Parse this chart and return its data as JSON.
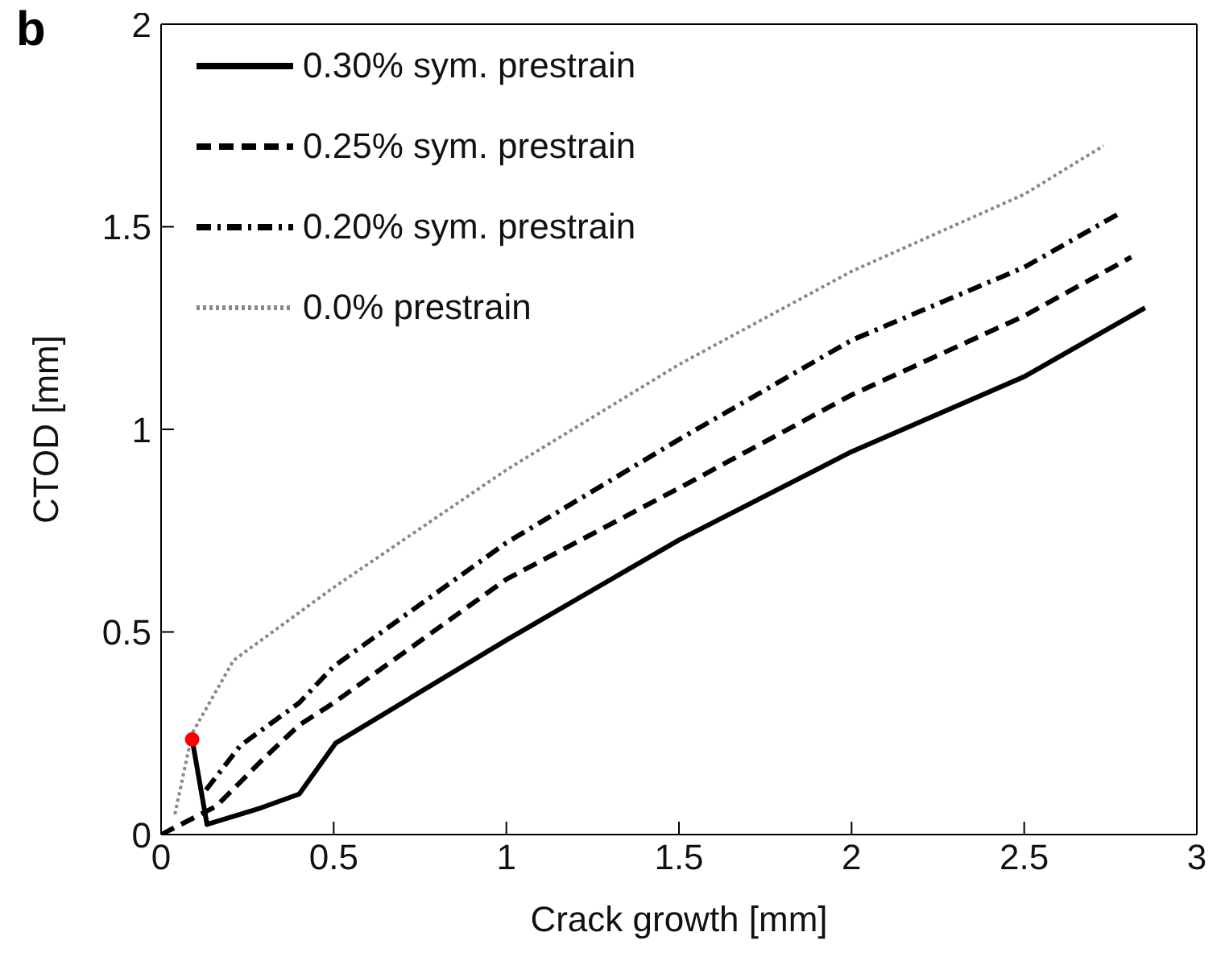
{
  "chart_data": {
    "type": "line",
    "xlabel": "Crack growth [mm]",
    "ylabel": "CTOD [mm]",
    "annotations": [
      "b"
    ],
    "xlim": [
      0,
      3
    ],
    "xticks": [
      0,
      0.5,
      1,
      1.5,
      2,
      2.5,
      3
    ],
    "ylim": [
      0,
      2
    ],
    "yticks": [
      0,
      0.5,
      1,
      1.5,
      2
    ],
    "grid": false,
    "legend": "top left",
    "marker": "none",
    "series": [
      {
        "name": "0.30% sym. prestrain",
        "color": "#000000",
        "line_style": "solid",
        "x": [
          0.09,
          0.133,
          0.29,
          0.4,
          0.506,
          1,
          1.5,
          2,
          2.5,
          2.85
        ],
        "values": [
          0.235,
          0.025,
          0.066,
          0.1,
          0.226,
          0.48,
          0.727,
          0.945,
          1.13,
          1.3
        ]
      },
      {
        "name": "0.25% sym. prestrain",
        "color": "#000000",
        "line_style": "dashed",
        "x": [
          0.0,
          0.16,
          0.3,
          0.4,
          0.5,
          1,
          1.5,
          2,
          2.5,
          2.81
        ],
        "values": [
          0.0,
          0.07,
          0.19,
          0.27,
          0.325,
          0.63,
          0.855,
          1.085,
          1.28,
          1.425
        ]
      },
      {
        "name": "0.20% sym. prestrain",
        "color": "#000000",
        "line_style": "dashdot",
        "x": [
          0.13,
          0.23,
          0.4,
          0.5,
          1,
          1.5,
          2,
          2.5,
          2.78
        ],
        "values": [
          0.11,
          0.22,
          0.325,
          0.415,
          0.72,
          0.975,
          1.22,
          1.4,
          1.535
        ]
      },
      {
        "name": "0.0% prestrain",
        "color": "#888888",
        "line_style": "dotted",
        "x": [
          0.04,
          0.09,
          0.21,
          0.5,
          1,
          1.5,
          2,
          2.5,
          2.73
        ],
        "values": [
          0.05,
          0.25,
          0.43,
          0.61,
          0.9,
          1.16,
          1.39,
          1.58,
          1.7
        ]
      },
      {
        "type": "scatter",
        "color": "#ff0000",
        "marker": "circle",
        "x": [
          0.09
        ],
        "values": [
          0.235
        ]
      }
    ]
  }
}
